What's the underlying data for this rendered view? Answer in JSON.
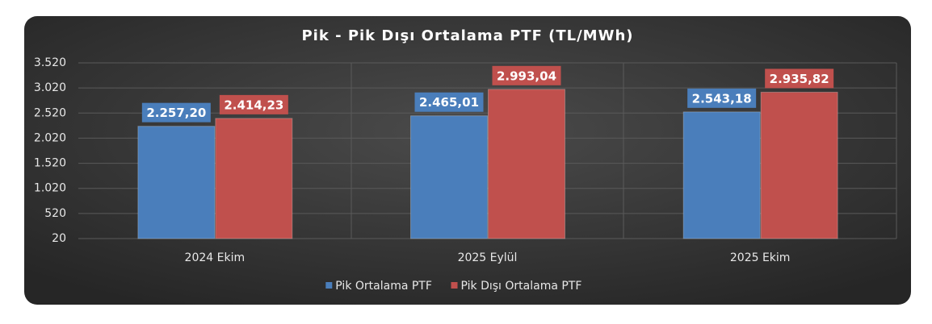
{
  "chart_data": {
    "type": "bar",
    "title": "Pik - Pik Dışı Ortalama PTF (TL/MWh)",
    "categories": [
      "2024 Ekim",
      "2025 Eylül",
      "2025 Ekim"
    ],
    "series": [
      {
        "name": "Pik Ortalama PTF",
        "color": "#4a7ebb",
        "values": [
          2257.2,
          2465.01,
          2543.18
        ],
        "value_labels": [
          "2.257,20",
          "2.465,01",
          "2.543,18"
        ]
      },
      {
        "name": "Pik Dışı Ortalama PTF",
        "color": "#c0504d",
        "values": [
          2414.23,
          2993.04,
          2935.82
        ],
        "value_labels": [
          "2.414,23",
          "2.993,04",
          "2.935,82"
        ]
      }
    ],
    "ylim": [
      20,
      3520
    ],
    "yticks": [
      {
        "value": 20,
        "label": "20"
      },
      {
        "value": 520,
        "label": "520"
      },
      {
        "value": 1020,
        "label": "1.020"
      },
      {
        "value": 1520,
        "label": "1.520"
      },
      {
        "value": 2020,
        "label": "2.020"
      },
      {
        "value": 2520,
        "label": "2.520"
      },
      {
        "value": 3020,
        "label": "3.020"
      },
      {
        "value": 3520,
        "label": "3.520"
      }
    ],
    "grid": true,
    "legend": "bottom"
  }
}
